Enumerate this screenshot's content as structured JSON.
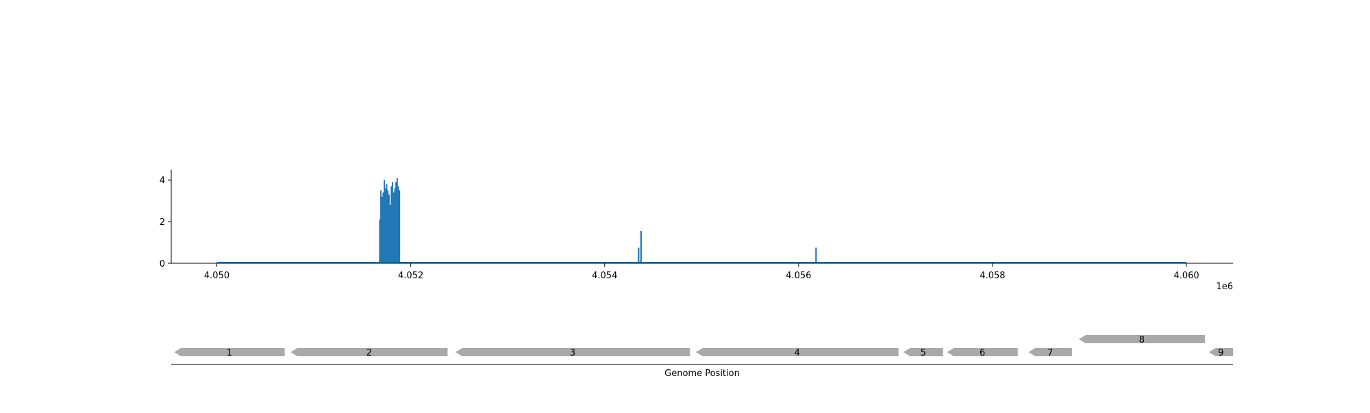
{
  "chart_data": [
    {
      "type": "bar",
      "xlim": [
        4049530,
        4060480
      ],
      "ylim": [
        0,
        4.5
      ],
      "x_ticks": [
        4050000,
        4052000,
        4054000,
        4056000,
        4058000,
        4060000
      ],
      "x_tick_labels": [
        "4.050",
        "4.052",
        "4.054",
        "4.056",
        "4.058",
        "4.060"
      ],
      "x_offset_label": "1e6",
      "y_ticks": [
        0,
        2,
        4
      ],
      "y_tick_labels": [
        "0",
        "2",
        "4"
      ],
      "baseline_range": [
        4050000,
        4060000
      ],
      "series_color": "#1f77b4",
      "x": [
        4051680,
        4051692,
        4051704,
        4051716,
        4051728,
        4051740,
        4051752,
        4051764,
        4051776,
        4051788,
        4051800,
        4051812,
        4051824,
        4051836,
        4051848,
        4051860,
        4051872,
        4051884,
        4054350,
        4054375,
        4056180
      ],
      "values": [
        2.1,
        3.5,
        3.2,
        3.4,
        4.0,
        3.6,
        3.8,
        3.5,
        3.3,
        2.8,
        3.7,
        3.9,
        3.4,
        3.6,
        3.9,
        4.1,
        3.7,
        3.5,
        0.75,
        1.55,
        0.75
      ]
    },
    {
      "type": "gene-track",
      "xlabel": "Genome Position",
      "gene_color": "#a9a9a9",
      "genes": [
        {
          "label": "1",
          "start": 4049560,
          "end": 4050700,
          "strand": "-",
          "row": 0
        },
        {
          "label": "2",
          "start": 4050760,
          "end": 4052380,
          "strand": "-",
          "row": 0
        },
        {
          "label": "3",
          "start": 4052460,
          "end": 4054880,
          "strand": "-",
          "row": 0
        },
        {
          "label": "4",
          "start": 4054940,
          "end": 4057030,
          "strand": "-",
          "row": 0
        },
        {
          "label": "5",
          "start": 4057080,
          "end": 4057490,
          "strand": "-",
          "row": 0
        },
        {
          "label": "6",
          "start": 4057530,
          "end": 4058260,
          "strand": "-",
          "row": 0
        },
        {
          "label": "7",
          "start": 4058370,
          "end": 4058820,
          "strand": "-",
          "row": 0
        },
        {
          "label": "8",
          "start": 4058890,
          "end": 4060190,
          "strand": "-",
          "row": 1
        },
        {
          "label": "9",
          "start": 4060230,
          "end": 4060480,
          "strand": "-",
          "row": 0
        }
      ]
    }
  ]
}
